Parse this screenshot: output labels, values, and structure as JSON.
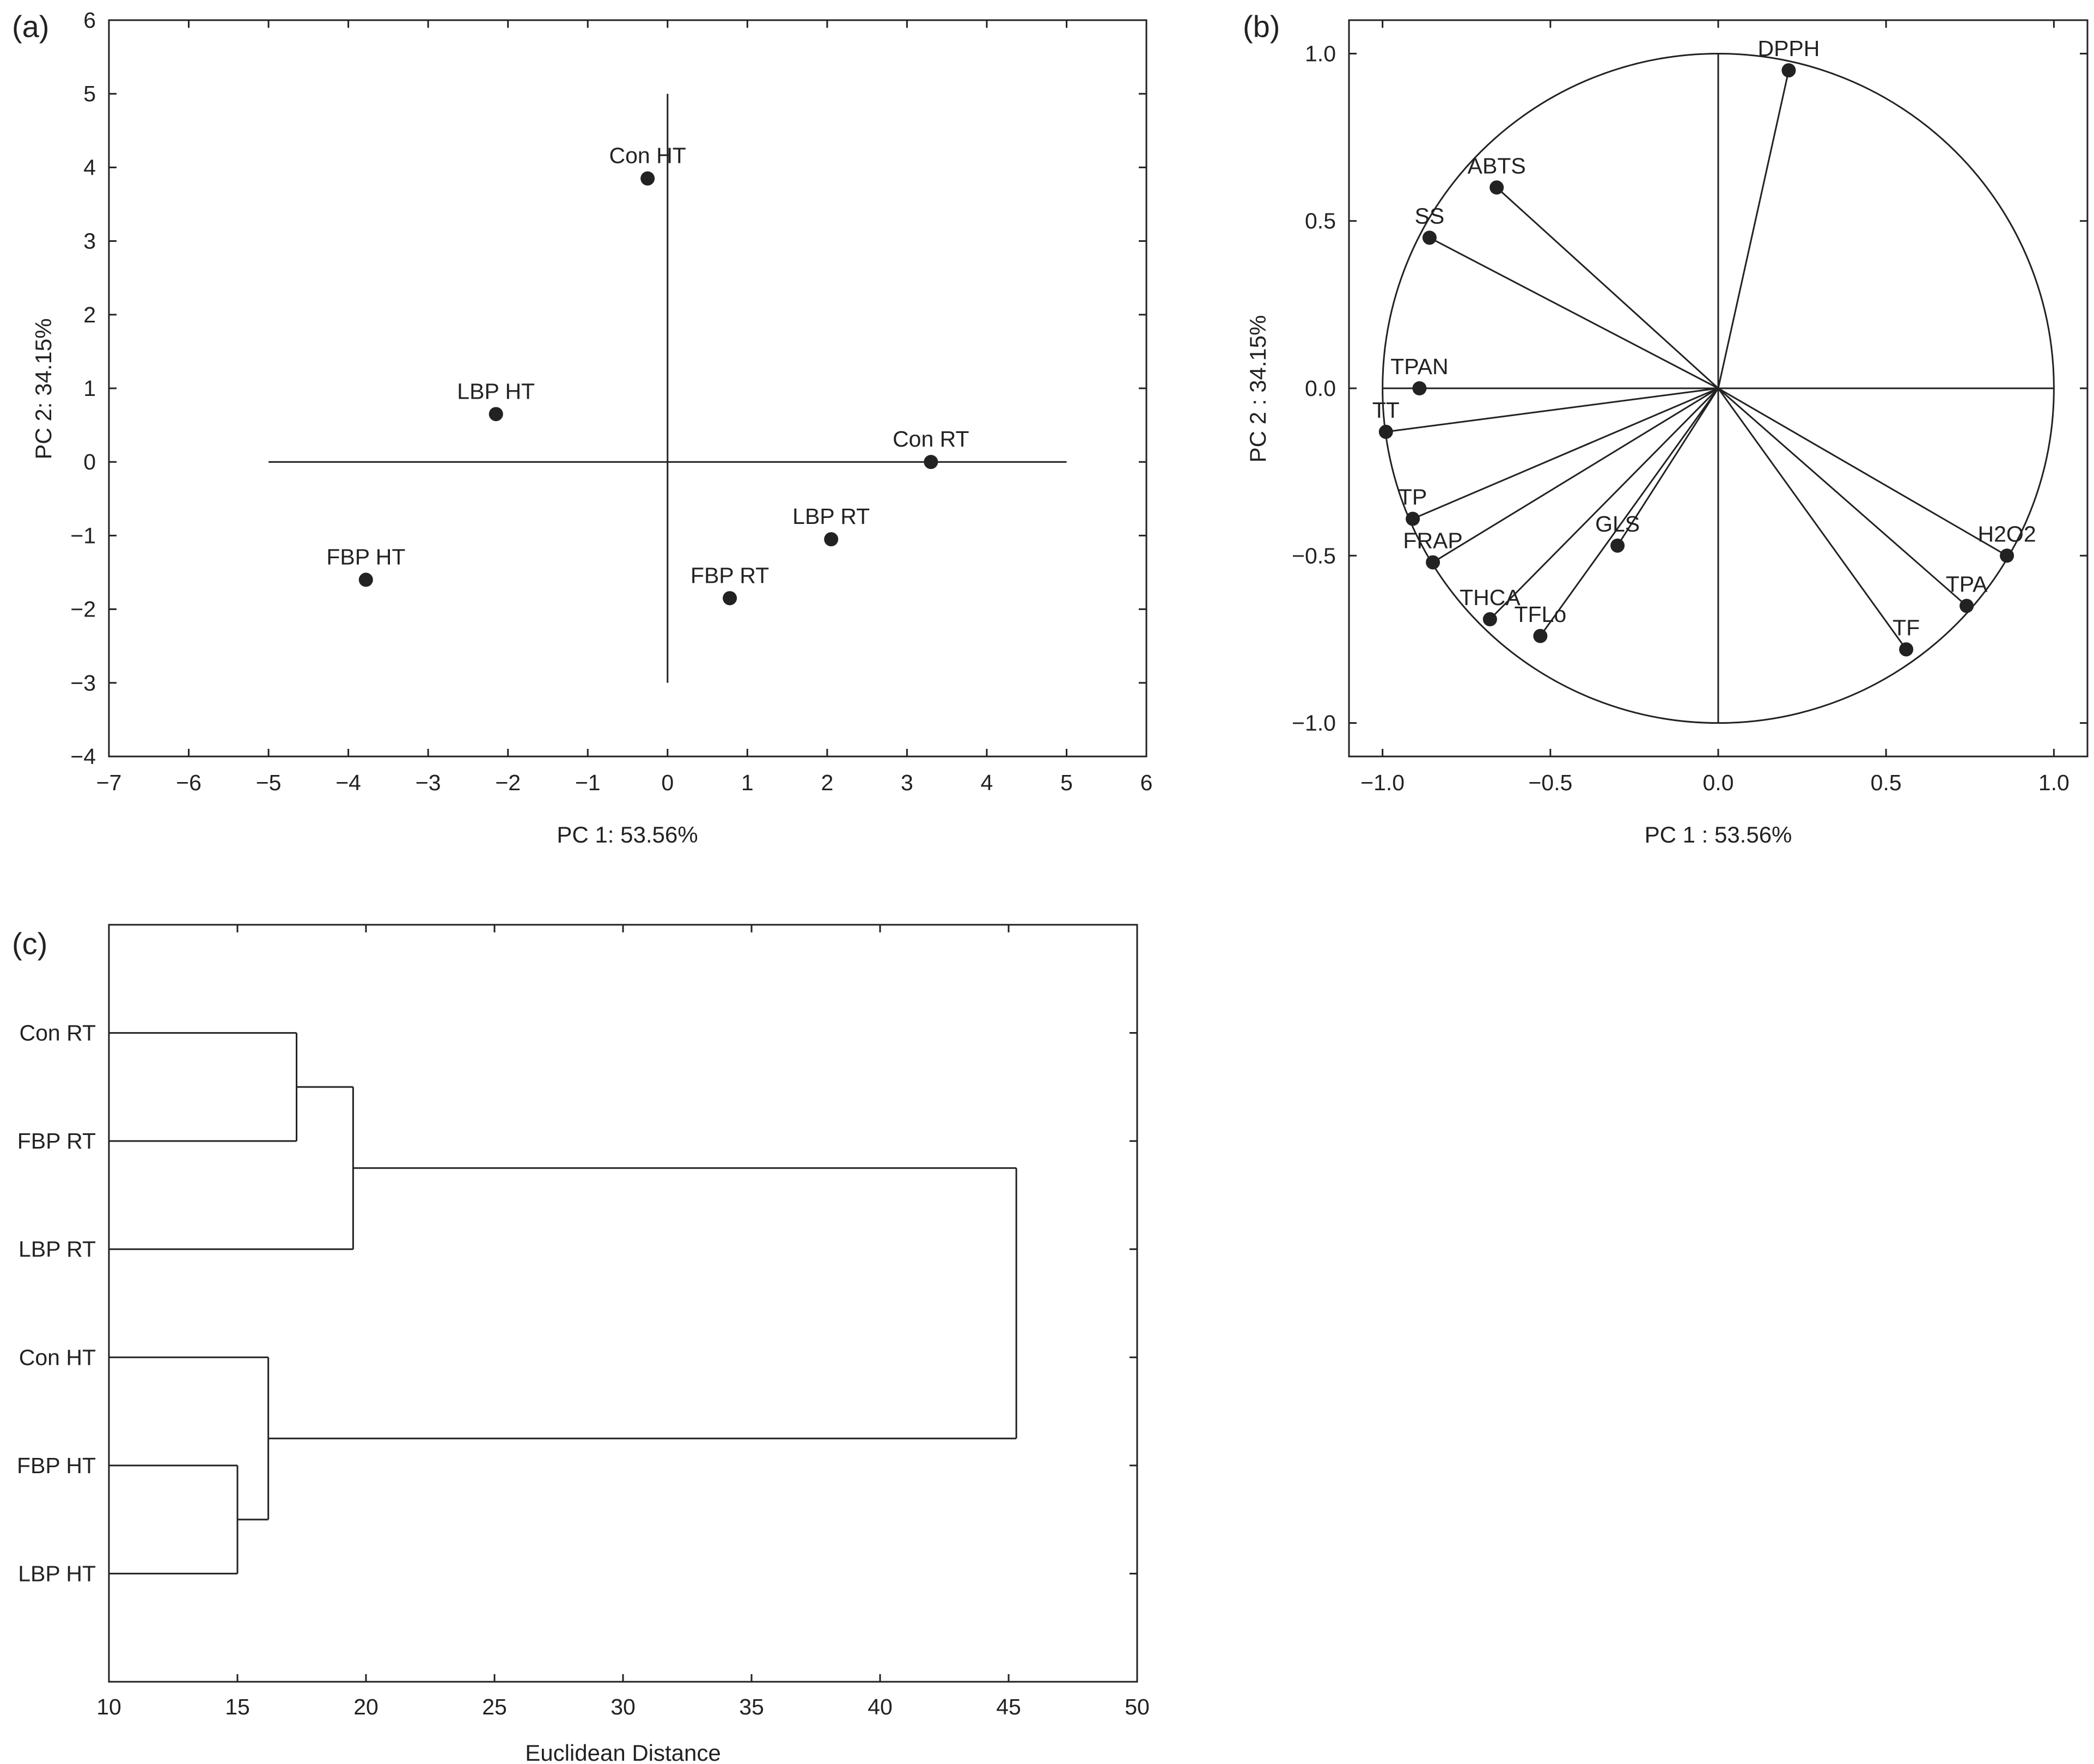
{
  "colors": {
    "ink": "#222222",
    "background": "#ffffff"
  },
  "chart_data": [
    {
      "panel": "(a)",
      "type": "scatter",
      "xlabel": "PC 1: 53.56%",
      "ylabel": "PC 2: 34.15%",
      "xlim": [
        -7,
        6
      ],
      "ylim": [
        -4,
        6
      ],
      "xticks": [
        -7,
        -6,
        -5,
        -4,
        -3,
        -2,
        -1,
        0,
        1,
        2,
        3,
        4,
        5,
        6
      ],
      "yticks": [
        -4,
        -3,
        -2,
        -1,
        0,
        1,
        2,
        3,
        4,
        5,
        6
      ],
      "reference_lines": {
        "horizontal_y0_from_x": [
          -5,
          5
        ],
        "vertical_x0_from_y": [
          -3,
          5
        ]
      },
      "grid": false,
      "points": [
        {
          "label": "Con HT",
          "x": -0.25,
          "y": 3.85
        },
        {
          "label": "LBP HT",
          "x": -2.15,
          "y": 0.65
        },
        {
          "label": "Con RT",
          "x": 3.3,
          "y": 0.0
        },
        {
          "label": "LBP RT",
          "x": 2.05,
          "y": -1.05
        },
        {
          "label": "FBP RT",
          "x": 0.78,
          "y": -1.85
        },
        {
          "label": "FBP HT",
          "x": -3.78,
          "y": -1.6
        }
      ]
    },
    {
      "panel": "(b)",
      "type": "scatter",
      "xlabel": "PC 1 : 53.56%",
      "ylabel": "PC 2 : 34.15%",
      "xlim": [
        -1.1,
        1.1
      ],
      "ylim": [
        -1.1,
        1.1
      ],
      "xticks": [
        -1.0,
        -0.5,
        0.0,
        0.5,
        1.0
      ],
      "yticks": [
        -1.0,
        -0.5,
        0.0,
        0.5,
        1.0
      ],
      "unit_circle": true,
      "grid": false,
      "points": [
        {
          "label": "DPPH",
          "x": 0.21,
          "y": 0.95
        },
        {
          "label": "ABTS",
          "x": -0.66,
          "y": 0.6
        },
        {
          "label": "SS",
          "x": -0.86,
          "y": 0.45
        },
        {
          "label": "TPAN",
          "x": -0.89,
          "y": 0.0
        },
        {
          "label": "TT",
          "x": -0.99,
          "y": -0.13
        },
        {
          "label": "TP",
          "x": -0.91,
          "y": -0.39
        },
        {
          "label": "FRAP",
          "x": -0.85,
          "y": -0.52
        },
        {
          "label": "THCA",
          "x": -0.68,
          "y": -0.69
        },
        {
          "label": "TFLo",
          "x": -0.53,
          "y": -0.74
        },
        {
          "label": "GLS",
          "x": -0.3,
          "y": -0.47
        },
        {
          "label": "TF",
          "x": 0.56,
          "y": -0.78
        },
        {
          "label": "TPA",
          "x": 0.74,
          "y": -0.65
        },
        {
          "label": "H2O2",
          "x": 0.86,
          "y": -0.5
        }
      ]
    },
    {
      "panel": "(c)",
      "type": "dendrogram",
      "xlabel": "Euclidean Distance",
      "xlim": [
        10,
        50
      ],
      "xticks": [
        10,
        15,
        20,
        25,
        30,
        35,
        40,
        45,
        50
      ],
      "leaves": [
        "Con RT",
        "FBP RT",
        "LBP RT",
        "Con HT",
        "FBP HT",
        "LBP HT"
      ],
      "merges": [
        {
          "members": [
            "FBP HT",
            "LBP HT"
          ],
          "distance": 15.0
        },
        {
          "members": [
            "Con HT",
            "FBP HT+LBP HT"
          ],
          "distance": 16.2
        },
        {
          "members": [
            "Con RT",
            "FBP RT"
          ],
          "distance": 17.3
        },
        {
          "members": [
            "Con RT+FBP RT",
            "LBP RT"
          ],
          "distance": 19.5
        },
        {
          "members": [
            "RT cluster",
            "HT cluster"
          ],
          "distance": 45.3
        }
      ]
    }
  ]
}
